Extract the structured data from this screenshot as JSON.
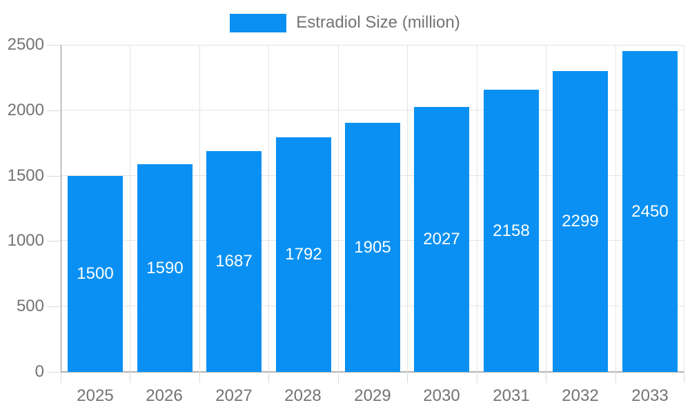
{
  "legend": {
    "label": "Estradiol Size (million)"
  },
  "colors": {
    "bar": "#0990f2",
    "bar_label": "#ffffff",
    "axis_text": "#737373",
    "grid": "#e3e3e3",
    "y_axis_line": "#8c8c8c",
    "x_axis_line": "#b3b3b3",
    "tick": "#d9d9d9",
    "background": "#ffffff"
  },
  "chart_data": {
    "type": "bar",
    "title": "",
    "series_name": "Estradiol Size (million)",
    "categories": [
      "2025",
      "2026",
      "2027",
      "2028",
      "2029",
      "2030",
      "2031",
      "2032",
      "2033"
    ],
    "values": [
      1500,
      1590,
      1687,
      1792,
      1905,
      2027,
      2158,
      2299,
      2450
    ],
    "xlabel": "",
    "ylabel": "",
    "ylim": [
      0,
      2500
    ],
    "yticks": [
      0,
      500,
      1000,
      1500,
      2000,
      2500
    ],
    "grid": true,
    "legend_position": "top",
    "bar_labels": "inside-center"
  }
}
